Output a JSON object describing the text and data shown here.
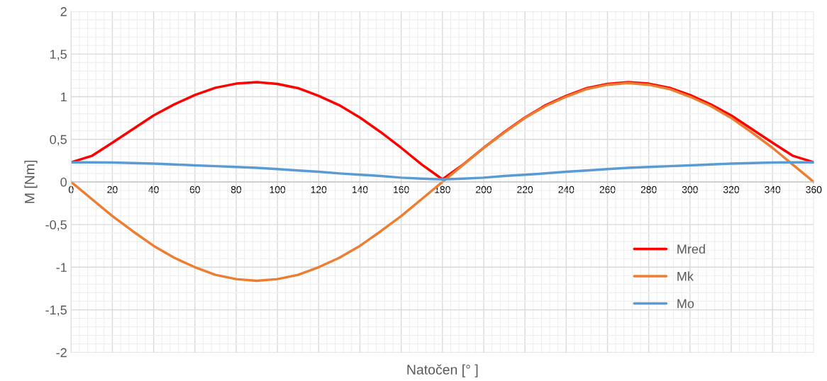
{
  "chart_data": {
    "type": "line",
    "xlabel": "Natočen [° ]",
    "ylabel": "M [Nm]",
    "x": [
      0,
      10,
      20,
      30,
      40,
      50,
      60,
      70,
      80,
      90,
      100,
      110,
      120,
      130,
      140,
      150,
      160,
      170,
      180,
      190,
      200,
      210,
      220,
      230,
      240,
      250,
      260,
      270,
      280,
      290,
      300,
      310,
      320,
      330,
      340,
      350,
      360
    ],
    "series": [
      {
        "name": "Mred",
        "color": "#ff0000",
        "values": [
          0.23,
          0.305,
          0.46,
          0.62,
          0.78,
          0.91,
          1.02,
          1.105,
          1.153,
          1.17,
          1.15,
          1.1,
          1.01,
          0.9,
          0.755,
          0.585,
          0.4,
          0.204,
          0.03,
          0.204,
          0.4,
          0.585,
          0.755,
          0.9,
          1.01,
          1.1,
          1.15,
          1.17,
          1.153,
          1.105,
          1.02,
          0.91,
          0.78,
          0.62,
          0.46,
          0.305,
          0.23
        ]
      },
      {
        "name": "Mk",
        "color": "#ed7d31",
        "values": [
          0,
          -0.2,
          -0.4,
          -0.58,
          -0.75,
          -0.89,
          -1.0,
          -1.09,
          -1.14,
          -1.16,
          -1.14,
          -1.09,
          -1.0,
          -0.89,
          -0.75,
          -0.58,
          -0.4,
          -0.2,
          0,
          0.2,
          0.4,
          0.58,
          0.75,
          0.89,
          1.0,
          1.09,
          1.14,
          1.16,
          1.14,
          1.09,
          1.0,
          0.89,
          0.75,
          0.58,
          0.4,
          0.2,
          0
        ]
      },
      {
        "name": "Mo",
        "color": "#5b9bd5",
        "values": [
          0.23,
          0.229,
          0.227,
          0.222,
          0.215,
          0.205,
          0.195,
          0.185,
          0.175,
          0.165,
          0.15,
          0.135,
          0.12,
          0.1,
          0.085,
          0.07,
          0.05,
          0.038,
          0.03,
          0.038,
          0.05,
          0.07,
          0.085,
          0.1,
          0.12,
          0.135,
          0.15,
          0.165,
          0.175,
          0.185,
          0.195,
          0.205,
          0.215,
          0.222,
          0.227,
          0.229,
          0.23
        ]
      }
    ],
    "xlim": [
      0,
      360
    ],
    "xticks": [
      0,
      20,
      40,
      60,
      80,
      100,
      120,
      140,
      160,
      180,
      200,
      220,
      240,
      260,
      280,
      300,
      320,
      340,
      360
    ],
    "ylim": [
      -2,
      2
    ],
    "yticks": [
      -2,
      {
        "value": -1.5,
        "label": "-1,5"
      },
      -1,
      {
        "value": -0.5,
        "label": "-0,5"
      },
      0,
      {
        "value": 0.5,
        "label": "0,5"
      },
      1,
      {
        "value": 1.5,
        "label": "1,5"
      },
      2
    ],
    "grid": true,
    "legend": "right",
    "marker": "none",
    "line_style": "solid"
  }
}
